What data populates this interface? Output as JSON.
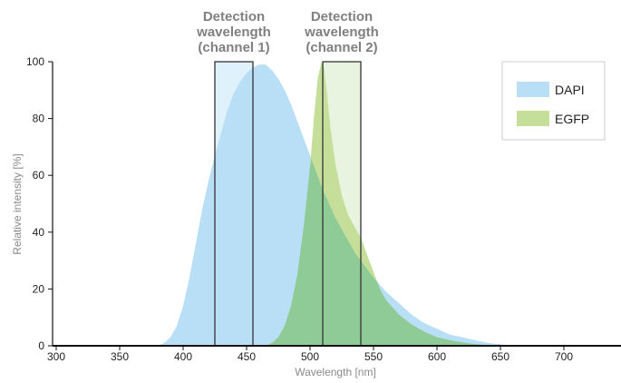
{
  "chart_data": {
    "type": "area",
    "xlabel": "Wavelength [nm]",
    "ylabel": "Relative intensity [%]",
    "xlim": [
      300,
      750
    ],
    "ylim": [
      0,
      100
    ],
    "x_ticks": [
      300,
      350,
      400,
      450,
      500,
      550,
      600,
      650,
      700
    ],
    "y_ticks": [
      0,
      20,
      40,
      60,
      80,
      100
    ],
    "grid": false,
    "legend_position": "top-right",
    "series": [
      {
        "name": "DAPI",
        "color": "#b8dff5",
        "x": [
          380,
          385,
          390,
          395,
          400,
          405,
          410,
          415,
          420,
          425,
          430,
          435,
          440,
          445,
          450,
          455,
          460,
          465,
          470,
          475,
          480,
          485,
          490,
          495,
          500,
          505,
          510,
          515,
          520,
          525,
          530,
          535,
          540,
          545,
          550,
          560,
          570,
          580,
          590,
          600,
          610,
          620,
          630,
          640,
          650,
          660
        ],
        "y": [
          0,
          1,
          3,
          7,
          14,
          24,
          36,
          48,
          58,
          67,
          75,
          83,
          89,
          93,
          96,
          98,
          99,
          99,
          97,
          94,
          90,
          85,
          79,
          73,
          67,
          61,
          55,
          50,
          45,
          41,
          37,
          33,
          30,
          27,
          24,
          19,
          15,
          11,
          8,
          6,
          4,
          3,
          2,
          1,
          0.5,
          0
        ]
      },
      {
        "name": "EGFP",
        "color": "#c5df9a",
        "x": [
          465,
          470,
          475,
          480,
          485,
          490,
          495,
          500,
          503,
          506,
          509,
          511,
          513,
          516,
          520,
          525,
          530,
          535,
          540,
          545,
          550,
          555,
          560,
          570,
          580,
          590,
          600,
          610,
          620,
          630,
          640,
          650
        ],
        "y": [
          0,
          1,
          3,
          7,
          14,
          25,
          42,
          63,
          80,
          94,
          100,
          98,
          90,
          77,
          64,
          53,
          46,
          42,
          38,
          32,
          26,
          20,
          16,
          11,
          7.5,
          5,
          3,
          2,
          1.2,
          0.6,
          0.2,
          0
        ]
      }
    ],
    "overlap_color": "#8fcb96",
    "detection_windows": [
      {
        "label_lines": [
          "Detection",
          "wavelength",
          "(channel 1)"
        ],
        "x_start": 425,
        "x_end": 455,
        "fill": "#dff1fb"
      },
      {
        "label_lines": [
          "Detection",
          "wavelength",
          "(channel 2)"
        ],
        "x_start": 510,
        "x_end": 540,
        "fill": "#e8f4e0"
      }
    ]
  }
}
